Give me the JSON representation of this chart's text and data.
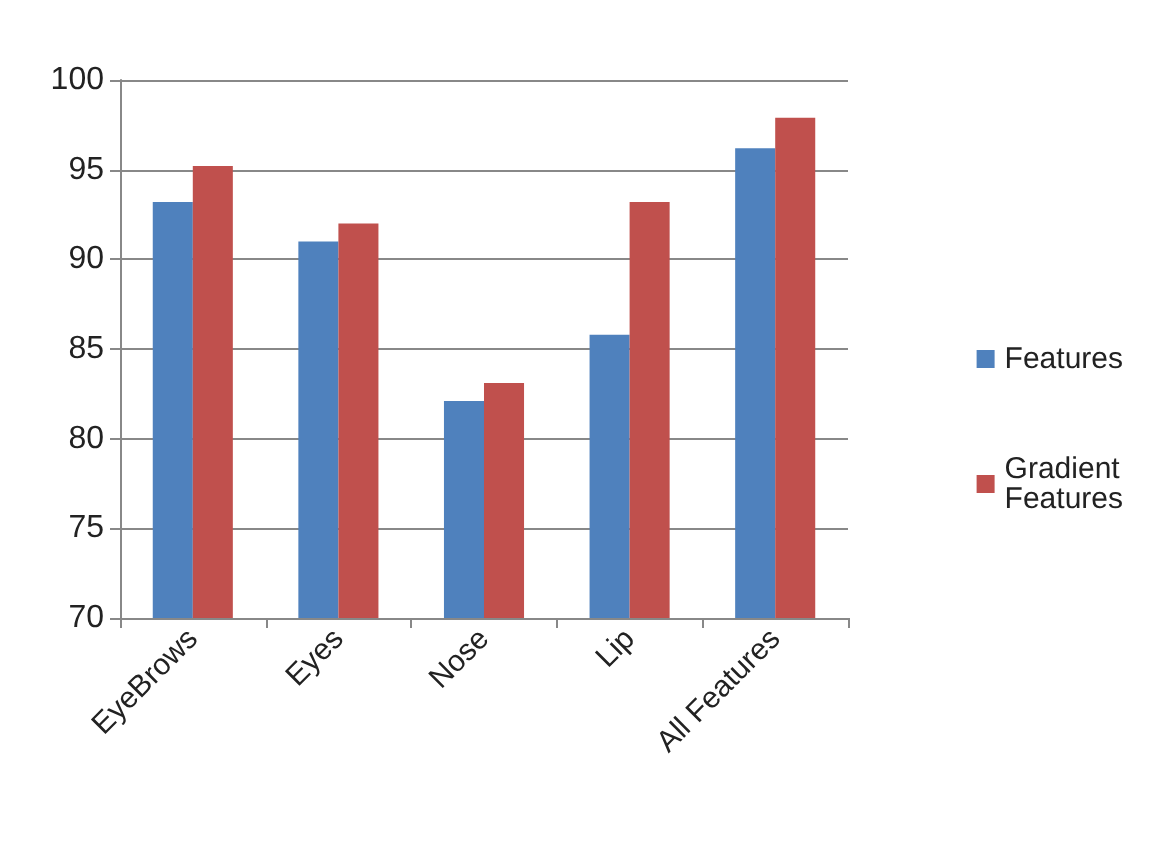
{
  "chart_data": {
    "type": "bar",
    "categories": [
      "EyeBrows",
      "Eyes",
      "Nose",
      "Lip",
      "All Features"
    ],
    "series": [
      {
        "name": "Features",
        "color": "#4f81bd",
        "values": [
          93.2,
          91.0,
          82.1,
          85.8,
          96.2
        ]
      },
      {
        "name": "Gradient Features",
        "color": "#c0504d",
        "values": [
          95.2,
          92.0,
          83.1,
          93.2,
          97.9
        ]
      }
    ],
    "ylim": [
      70,
      100
    ],
    "yticks": [
      70,
      75,
      80,
      85,
      90,
      95,
      100
    ],
    "grid": "y",
    "legend": "right"
  }
}
